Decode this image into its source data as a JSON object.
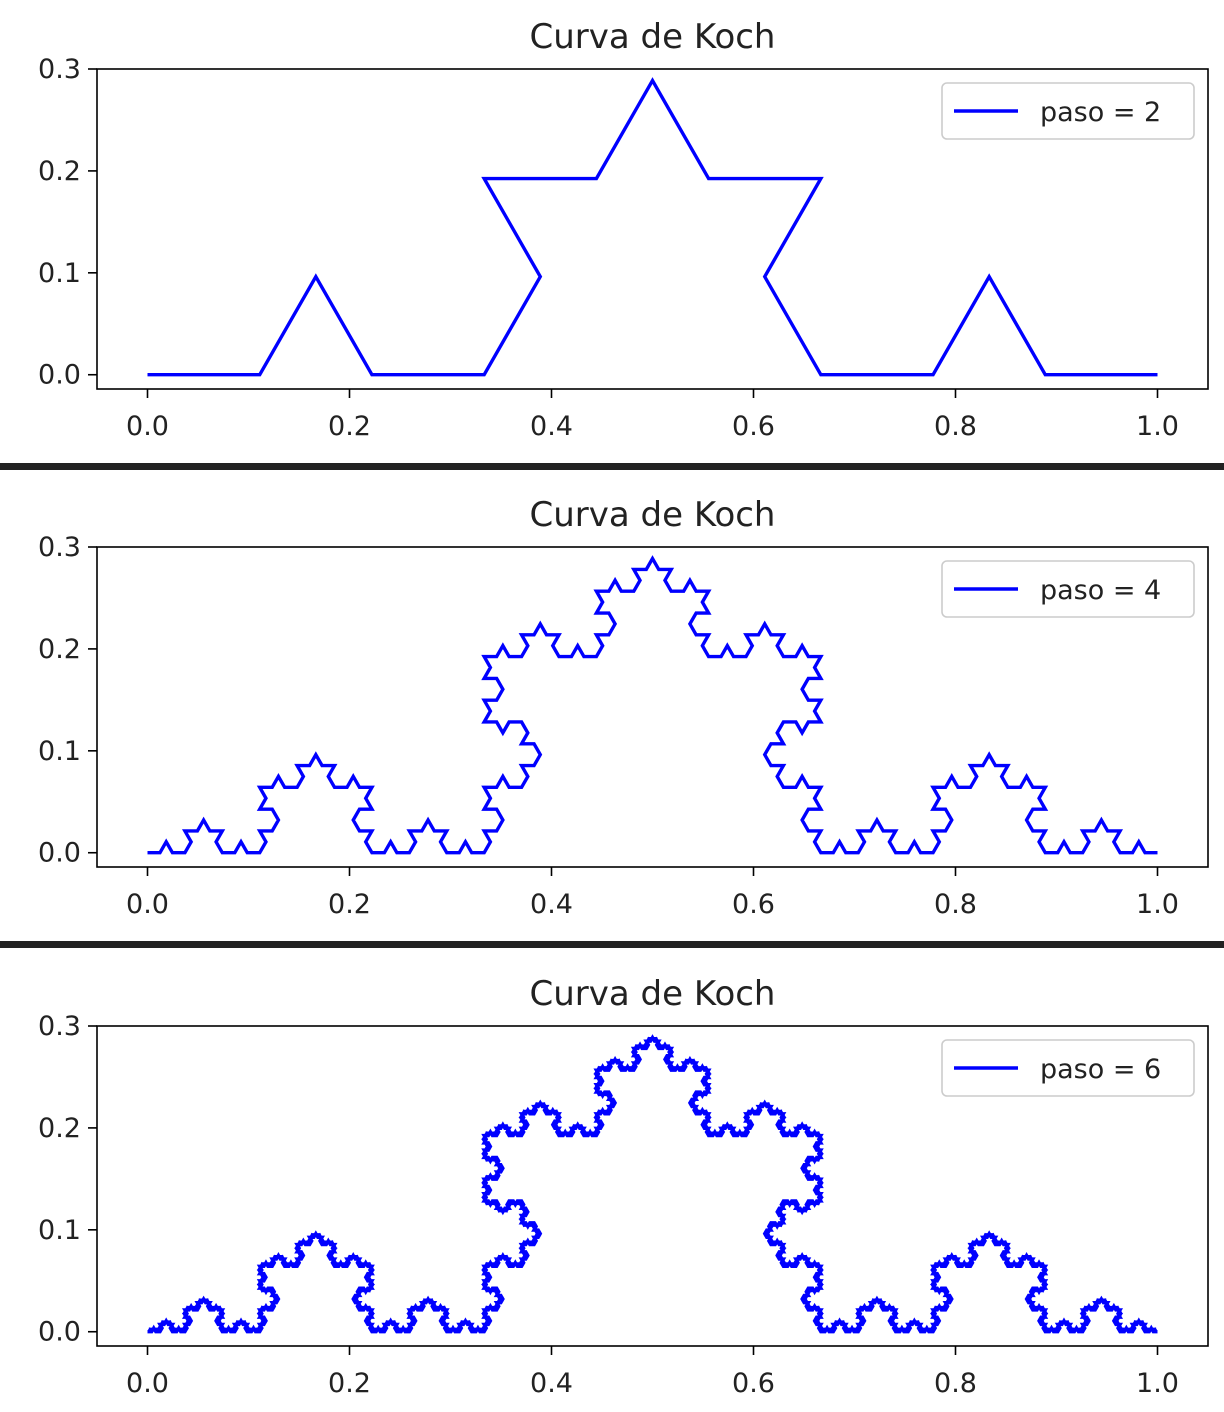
{
  "chart_data": [
    {
      "type": "line",
      "title": "Curva de Koch",
      "xlabel": "",
      "ylabel": "",
      "xlim": [
        -0.05,
        1.05
      ],
      "ylim": [
        -0.014,
        0.3
      ],
      "xticks": [
        "0.0",
        "0.2",
        "0.4",
        "0.6",
        "0.8",
        "1.0"
      ],
      "xtick_values": [
        0,
        0.2,
        0.4,
        0.6,
        0.8,
        1.0
      ],
      "yticks": [
        "0.0",
        "0.1",
        "0.2",
        "0.3"
      ],
      "ytick_values": [
        0,
        0.1,
        0.2,
        0.3
      ],
      "grid": false,
      "legend_position": "top-right",
      "series": [
        {
          "name": "paso = 2",
          "koch_steps": 2,
          "x_range": [
            0,
            1
          ],
          "y_max": 0.2887,
          "color": "#0000ff"
        }
      ]
    },
    {
      "type": "line",
      "title": "Curva de Koch",
      "xlabel": "",
      "ylabel": "",
      "xlim": [
        -0.05,
        1.05
      ],
      "ylim": [
        -0.014,
        0.3
      ],
      "xticks": [
        "0.0",
        "0.2",
        "0.4",
        "0.6",
        "0.8",
        "1.0"
      ],
      "xtick_values": [
        0,
        0.2,
        0.4,
        0.6,
        0.8,
        1.0
      ],
      "yticks": [
        "0.0",
        "0.1",
        "0.2",
        "0.3"
      ],
      "ytick_values": [
        0,
        0.1,
        0.2,
        0.3
      ],
      "grid": false,
      "legend_position": "top-right",
      "series": [
        {
          "name": "paso = 4",
          "koch_steps": 4,
          "x_range": [
            0,
            1
          ],
          "y_max": 0.2887,
          "color": "#0000ff"
        }
      ]
    },
    {
      "type": "line",
      "title": "Curva de Koch",
      "xlabel": "",
      "ylabel": "",
      "xlim": [
        -0.05,
        1.05
      ],
      "ylim": [
        -0.014,
        0.3
      ],
      "xticks": [
        "0.0",
        "0.2",
        "0.4",
        "0.6",
        "0.8",
        "1.0"
      ],
      "xtick_values": [
        0,
        0.2,
        0.4,
        0.6,
        0.8,
        1.0
      ],
      "yticks": [
        "0.0",
        "0.1",
        "0.2",
        "0.3"
      ],
      "ytick_values": [
        0,
        0.1,
        0.2,
        0.3
      ],
      "grid": false,
      "legend_position": "top-right",
      "series": [
        {
          "name": "paso = 6",
          "koch_steps": 6,
          "x_range": [
            0,
            1
          ],
          "y_max": 0.2887,
          "color": "#0000ff"
        }
      ]
    }
  ],
  "colors": {
    "line": "#0000ff",
    "separator": "#222222",
    "axes": "#000000",
    "text": "#222222"
  }
}
